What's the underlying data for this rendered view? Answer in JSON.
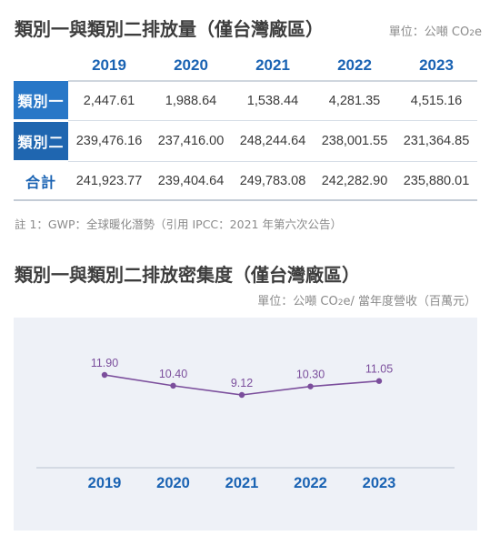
{
  "table_section": {
    "title": "類別一與類別二排放量（僅台灣廠區）",
    "unit_prefix": "單位：公噸 CO",
    "unit_sub": "2",
    "unit_suffix": "e",
    "years": [
      "2019",
      "2020",
      "2021",
      "2022",
      "2023"
    ],
    "rows": [
      {
        "label": "類別一",
        "values": [
          "2,447.61",
          "1,988.64",
          "1,538.44",
          "4,281.35",
          "4,515.16"
        ]
      },
      {
        "label": "類別二",
        "values": [
          "239,476.16",
          "237,416.00",
          "248,244.64",
          "238,001.55",
          "231,364.85"
        ]
      },
      {
        "label": "合計",
        "values": [
          "241,923.77",
          "239,404.64",
          "249,783.08",
          "242,282.90",
          "235,880.01"
        ]
      }
    ],
    "note": "註 1：GWP：全球暖化潛勢（引用 IPCC：2021 年第六次公告）"
  },
  "chart_section": {
    "title": "類別一與類別二排放密集度（僅台灣廠區）",
    "unit_prefix": "單位：公噸 CO",
    "unit_sub": "2",
    "unit_suffix": "e/ 當年度營收（百萬元）"
  },
  "chart_data": {
    "type": "line",
    "title": "類別一與類別二排放密集度（僅台灣廠區）",
    "categories": [
      "2019",
      "2020",
      "2021",
      "2022",
      "2023"
    ],
    "series": [
      {
        "values": [
          11.9,
          10.4,
          9.12,
          10.3,
          11.05
        ],
        "labels": [
          "11.90",
          "10.40",
          "9.12",
          "10.30",
          "11.05"
        ]
      }
    ],
    "ylim": [
      0,
      13
    ],
    "grid": false,
    "line_color": "#7b4e9c",
    "axis_label_color": "#1a63b3"
  }
}
